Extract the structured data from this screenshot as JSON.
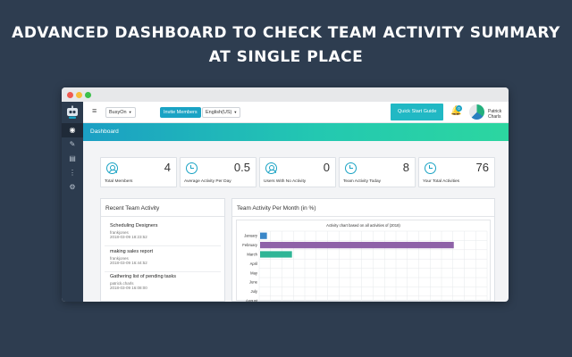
{
  "headline": {
    "line1": "ADVANCED DASHBOARD TO CHECK TEAM ACTIVITY SUMMARY",
    "line2": "AT SINGLE PLACE"
  },
  "topbar": {
    "menu_icon": "hamburger-icon",
    "workspace_select": "BusyOn",
    "invite_label": "Invite Members",
    "language_select": "English(US)",
    "quick_start_label": "Quick Start Guide",
    "notification_count": "0",
    "user_name": "Patrick Charls"
  },
  "sidebar": {
    "icons": [
      "eye-icon",
      "wrench-icon",
      "calendar-icon",
      "more-icon",
      "gear-icon"
    ]
  },
  "banner": {
    "title": "Dashboard"
  },
  "cards": [
    {
      "value": "4",
      "label": "Total Members",
      "icon": "person-icon"
    },
    {
      "value": "0.5",
      "label": "Average Activity Per Day",
      "icon": "clock-icon"
    },
    {
      "value": "0",
      "label": "Users With No Activity",
      "icon": "person-icon"
    },
    {
      "value": "8",
      "label": "Team Activity Today",
      "icon": "clock-icon"
    },
    {
      "value": "76",
      "label": "Your Total Activities",
      "icon": "clock-icon"
    }
  ],
  "recent": {
    "title": "Recent Team Activity",
    "items": [
      {
        "title": "Scheduling Designers",
        "user": "frankjones",
        "date": "2018-03-09 18:23:52"
      },
      {
        "title": "making sales report",
        "user": "frankjones",
        "date": "2018-03-09 16:44:52"
      },
      {
        "title": "Gathering list of pending tasks",
        "user": "patrick.charls",
        "date": "2018-03-09 16:08:00"
      }
    ]
  },
  "chart_panel": {
    "title": "Team Activity Per Month (in %)"
  },
  "chart_data": {
    "type": "bar",
    "orientation": "horizontal",
    "title": "Activity chart based on all activities of (2018)",
    "categories": [
      "January",
      "February",
      "March",
      "April",
      "May",
      "June",
      "July",
      "August"
    ],
    "values": [
      3,
      85,
      14,
      0,
      0,
      0,
      0,
      0
    ],
    "colors": [
      "#3a87c8",
      "#8e62a8",
      "#2fb596",
      "#cccccc",
      "#cccccc",
      "#cccccc",
      "#cccccc",
      "#cccccc"
    ],
    "xlim": [
      0,
      100
    ],
    "grid": true
  }
}
